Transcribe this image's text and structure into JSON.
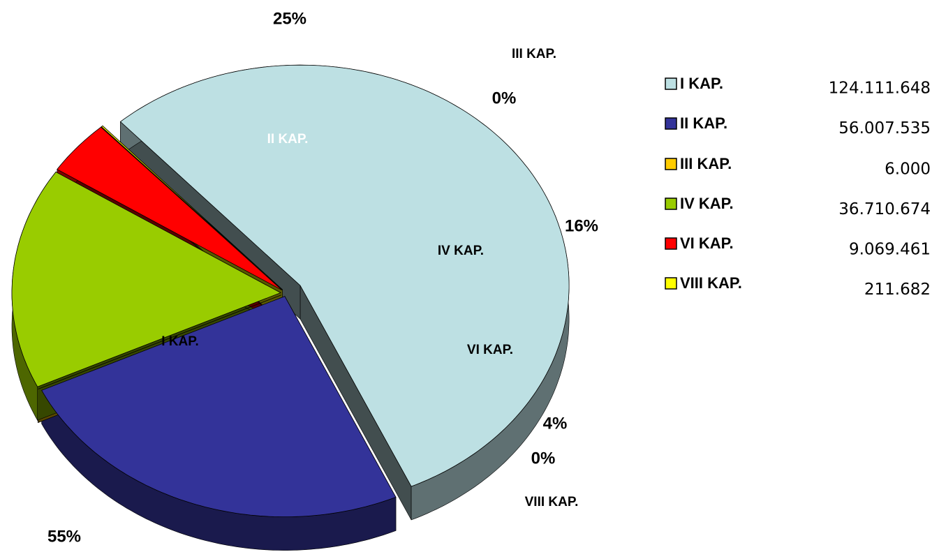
{
  "chart_data": {
    "type": "pie",
    "categories": [
      "I KAP.",
      "II KAP.",
      "III KAP.",
      "IV KAP.",
      "VI KAP.",
      "VIII KAP."
    ],
    "values": [
      124111648,
      56007535,
      6000,
      36710674,
      9069461,
      211682
    ],
    "value_labels": [
      "124.111.648",
      "56.007.535",
      "6.000",
      "36.710.674",
      "9.069.461",
      "211.682"
    ],
    "percent_labels": [
      "55%",
      "25%",
      "0%",
      "16%",
      "4%",
      "0%"
    ],
    "colors": [
      "#bde0e3",
      "#333399",
      "#ffcc00",
      "#99cc00",
      "#ff0000",
      "#ffff00"
    ]
  }
}
